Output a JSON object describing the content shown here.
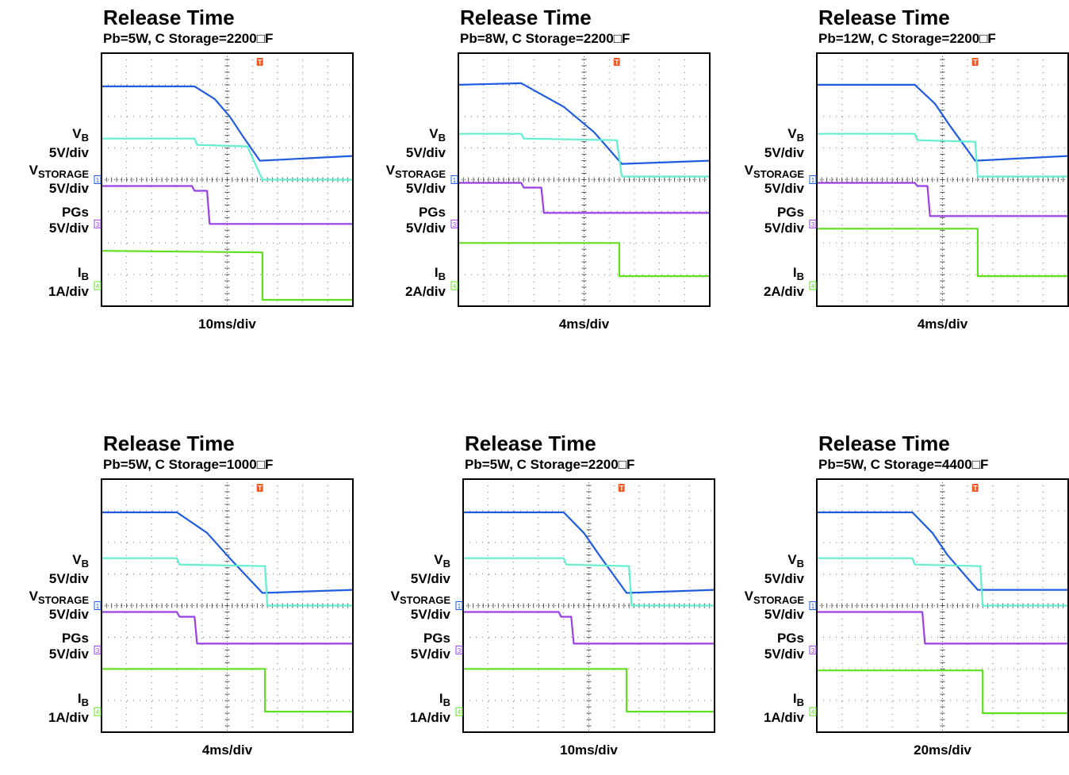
{
  "colors": {
    "vb": "#1f5ce0",
    "vstorage": "#62efcf",
    "pgs": "#9b3fe6",
    "ib": "#5fe11f",
    "trigger": "#ef5a28",
    "grid": "#777777",
    "frame": "#000000"
  },
  "labels": {
    "vb_main": "V",
    "vb_sub": "B",
    "vstorage_main": "V",
    "vstorage_sub": "STORAGE",
    "pgs": "PGs",
    "ib_main": "I",
    "ib_sub": "B",
    "trigger_marker": "T"
  },
  "panels": [
    {
      "title": "Release Time",
      "subtitle": "Pb=5W, C Storage=2200□F",
      "vb_scale": "5V/div",
      "vstorage_scale": "5V/div",
      "pgs_scale": "5V/div",
      "ib_scale": "1A/div",
      "timebase": "10ms/div",
      "markers": {
        "vstorage": "1",
        "pgs": "3",
        "ib": "4"
      }
    },
    {
      "title": "Release Time",
      "subtitle": "Pb=8W, C Storage=2200□F",
      "vb_scale": "5V/div",
      "vstorage_scale": "5V/div",
      "pgs_scale": "5V/div",
      "ib_scale": "2A/div",
      "timebase": "4ms/div",
      "markers": {
        "vstorage": "1",
        "pgs": "3",
        "ib": "4"
      }
    },
    {
      "title": "Release Time",
      "subtitle": "Pb=12W, C Storage=2200□F",
      "vb_scale": "5V/div",
      "vstorage_scale": "5V/div",
      "pgs_scale": "5V/div",
      "ib_scale": "2A/div",
      "timebase": "4ms/div",
      "markers": {
        "vstorage": "1",
        "pgs": "3",
        "ib": "4"
      }
    },
    {
      "title": "Release Time",
      "subtitle": "Pb=5W, C Storage=1000□F",
      "vb_scale": "5V/div",
      "vstorage_scale": "5V/div",
      "pgs_scale": "5V/div",
      "ib_scale": "1A/div",
      "timebase": "4ms/div",
      "markers": {
        "vstorage": "1",
        "pgs": "3",
        "ib": "4"
      }
    },
    {
      "title": "Release Time",
      "subtitle": "Pb=5W, C Storage=2200□F",
      "vb_scale": "5V/div",
      "vstorage_scale": "5V/div",
      "pgs_scale": "5V/div",
      "ib_scale": "1A/div",
      "timebase": "10ms/div",
      "markers": {
        "vstorage": "1",
        "pgs": "3",
        "ib": "4"
      }
    },
    {
      "title": "Release Time",
      "subtitle": "Pb=5W, C Storage=4400□F",
      "vb_scale": "5V/div",
      "vstorage_scale": "5V/div",
      "pgs_scale": "5V/div",
      "ib_scale": "1A/div",
      "timebase": "20ms/div",
      "markers": {
        "vstorage": "1",
        "pgs": "3",
        "ib": "4"
      }
    }
  ],
  "chart_data": [
    {
      "type": "line",
      "x_unit": "div",
      "y_unit": "div",
      "xlim": [
        0,
        10
      ],
      "ylim": [
        -4,
        4
      ],
      "grid": true,
      "series": [
        {
          "name": "V_B",
          "x": [
            0,
            3.7,
            4.5,
            5.1,
            5.6,
            6.3,
            10
          ],
          "y": [
            2.95,
            2.95,
            2.55,
            2.0,
            1.4,
            0.6,
            0.75
          ]
        },
        {
          "name": "V_STORAGE",
          "x": [
            0,
            3.7,
            3.8,
            5.8,
            6.4,
            10
          ],
          "y": [
            1.3,
            1.3,
            1.1,
            1.05,
            0.0,
            0.0
          ]
        },
        {
          "name": "PGs",
          "x": [
            0,
            3.6,
            3.7,
            4.2,
            4.3,
            10
          ],
          "y": [
            -0.2,
            -0.2,
            -0.35,
            -0.35,
            -1.4,
            -1.4
          ]
        },
        {
          "name": "I_B",
          "x": [
            0,
            6.4,
            6.4,
            10
          ],
          "y": [
            -2.25,
            -2.3,
            -3.8,
            -3.8
          ]
        }
      ]
    },
    {
      "type": "line",
      "x_unit": "div",
      "y_unit": "div",
      "xlim": [
        0,
        10
      ],
      "ylim": [
        -4,
        4
      ],
      "grid": true,
      "series": [
        {
          "name": "V_B",
          "x": [
            0,
            2.5,
            4.2,
            5.4,
            6.5,
            10
          ],
          "y": [
            3.0,
            3.05,
            2.3,
            1.5,
            0.5,
            0.6
          ]
        },
        {
          "name": "V_STORAGE",
          "x": [
            0,
            2.5,
            2.6,
            6.3,
            6.5,
            10
          ],
          "y": [
            1.45,
            1.45,
            1.3,
            1.25,
            0.1,
            0.1
          ]
        },
        {
          "name": "PGs",
          "x": [
            0,
            2.5,
            2.6,
            3.3,
            3.4,
            10
          ],
          "y": [
            -0.1,
            -0.1,
            -0.25,
            -0.25,
            -1.05,
            -1.05
          ]
        },
        {
          "name": "I_B",
          "x": [
            0,
            6.4,
            6.4,
            10
          ],
          "y": [
            -2.0,
            -2.0,
            -3.05,
            -3.05
          ]
        }
      ]
    },
    {
      "type": "line",
      "x_unit": "div",
      "y_unit": "div",
      "xlim": [
        0,
        10
      ],
      "ylim": [
        -4,
        4
      ],
      "grid": true,
      "series": [
        {
          "name": "V_B",
          "x": [
            0,
            3.9,
            4.7,
            5.3,
            6.3,
            10
          ],
          "y": [
            3.0,
            3.0,
            2.4,
            1.7,
            0.6,
            0.75
          ]
        },
        {
          "name": "V_STORAGE",
          "x": [
            0,
            3.9,
            4.0,
            6.3,
            6.4,
            10
          ],
          "y": [
            1.45,
            1.45,
            1.25,
            1.2,
            0.1,
            0.1
          ]
        },
        {
          "name": "PGs",
          "x": [
            0,
            3.9,
            4.0,
            4.4,
            4.5,
            10
          ],
          "y": [
            -0.1,
            -0.1,
            -0.2,
            -0.2,
            -1.15,
            -1.15
          ]
        },
        {
          "name": "I_B",
          "x": [
            0,
            6.4,
            6.4,
            10
          ],
          "y": [
            -1.55,
            -1.55,
            -3.05,
            -3.05
          ]
        }
      ]
    },
    {
      "type": "line",
      "x_unit": "div",
      "y_unit": "div",
      "xlim": [
        0,
        10
      ],
      "ylim": [
        -4,
        4
      ],
      "grid": true,
      "series": [
        {
          "name": "V_B",
          "x": [
            0,
            3.0,
            4.2,
            5.1,
            6.4,
            10
          ],
          "y": [
            2.95,
            2.95,
            2.3,
            1.5,
            0.4,
            0.5
          ]
        },
        {
          "name": "V_STORAGE",
          "x": [
            0,
            3.0,
            3.1,
            6.5,
            6.6,
            10
          ],
          "y": [
            1.5,
            1.5,
            1.3,
            1.25,
            0.0,
            0.0
          ]
        },
        {
          "name": "PGs",
          "x": [
            0,
            3.0,
            3.1,
            3.7,
            3.8,
            10
          ],
          "y": [
            -0.2,
            -0.2,
            -0.35,
            -0.35,
            -1.2,
            -1.2
          ]
        },
        {
          "name": "I_B",
          "x": [
            0,
            6.5,
            6.5,
            10
          ],
          "y": [
            -2.0,
            -2.0,
            -3.35,
            -3.35
          ]
        }
      ]
    },
    {
      "type": "line",
      "x_unit": "div",
      "y_unit": "div",
      "xlim": [
        0,
        10
      ],
      "ylim": [
        -4,
        4
      ],
      "grid": true,
      "series": [
        {
          "name": "V_B",
          "x": [
            0,
            4.0,
            4.8,
            5.5,
            6.5,
            10
          ],
          "y": [
            2.95,
            2.95,
            2.3,
            1.5,
            0.4,
            0.5
          ]
        },
        {
          "name": "V_STORAGE",
          "x": [
            0,
            4.0,
            4.1,
            6.6,
            6.7,
            10
          ],
          "y": [
            1.5,
            1.5,
            1.3,
            1.25,
            0.0,
            0.0
          ]
        },
        {
          "name": "PGs",
          "x": [
            0,
            3.8,
            3.9,
            4.3,
            4.4,
            10
          ],
          "y": [
            -0.2,
            -0.2,
            -0.35,
            -0.35,
            -1.2,
            -1.2
          ]
        },
        {
          "name": "I_B",
          "x": [
            0,
            6.5,
            6.5,
            10
          ],
          "y": [
            -2.0,
            -2.0,
            -3.35,
            -3.35
          ]
        }
      ]
    },
    {
      "type": "line",
      "x_unit": "div",
      "y_unit": "div",
      "xlim": [
        0,
        10
      ],
      "ylim": [
        -4,
        4
      ],
      "grid": true,
      "series": [
        {
          "name": "V_B",
          "x": [
            0,
            3.8,
            4.6,
            5.2,
            6.4,
            10
          ],
          "y": [
            2.95,
            2.95,
            2.3,
            1.6,
            0.5,
            0.5
          ]
        },
        {
          "name": "V_STORAGE",
          "x": [
            0,
            3.8,
            3.9,
            6.5,
            6.6,
            10
          ],
          "y": [
            1.5,
            1.5,
            1.3,
            1.25,
            0.0,
            0.0
          ]
        },
        {
          "name": "PGs",
          "x": [
            0,
            4.2,
            4.3,
            10
          ],
          "y": [
            -0.2,
            -0.2,
            -1.2,
            -1.2
          ]
        },
        {
          "name": "I_B",
          "x": [
            0,
            6.6,
            6.6,
            10
          ],
          "y": [
            -2.05,
            -2.05,
            -3.4,
            -3.4
          ]
        }
      ]
    }
  ]
}
